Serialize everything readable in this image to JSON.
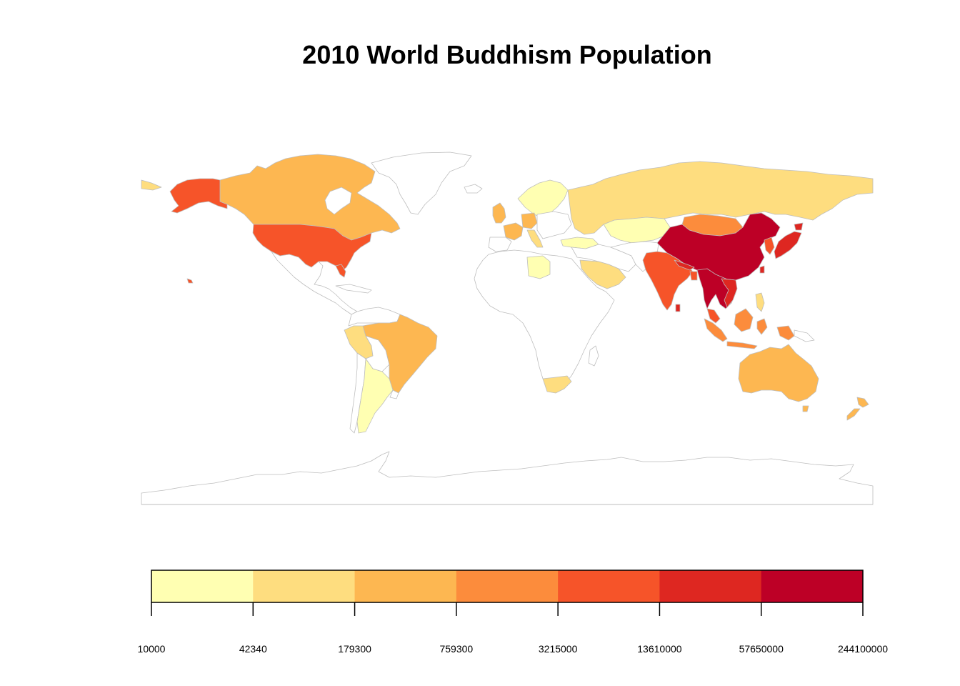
{
  "title": "2010 World Buddhism Population",
  "legend": {
    "bins": [
      {
        "color": "#FFFFB2",
        "from": 10000,
        "to": 42340
      },
      {
        "color": "#FEDD7F",
        "from": 42340,
        "to": 179300
      },
      {
        "color": "#FDB751",
        "from": 179300,
        "to": 759300
      },
      {
        "color": "#FC8C3C",
        "from": 759300,
        "to": 3215000
      },
      {
        "color": "#F65429",
        "from": 3215000,
        "to": 13610000
      },
      {
        "color": "#DE2721",
        "from": 13610000,
        "to": 57650000
      },
      {
        "color": "#BD0026",
        "from": 57650000,
        "to": 244100000
      }
    ],
    "break_labels": [
      "10000",
      "42340",
      "179300",
      "759300",
      "3215000",
      "13610000",
      "57650000",
      "244100000"
    ]
  },
  "colors": {
    "no_data": "#FFFFFF",
    "border": "#BEBEBE"
  }
}
